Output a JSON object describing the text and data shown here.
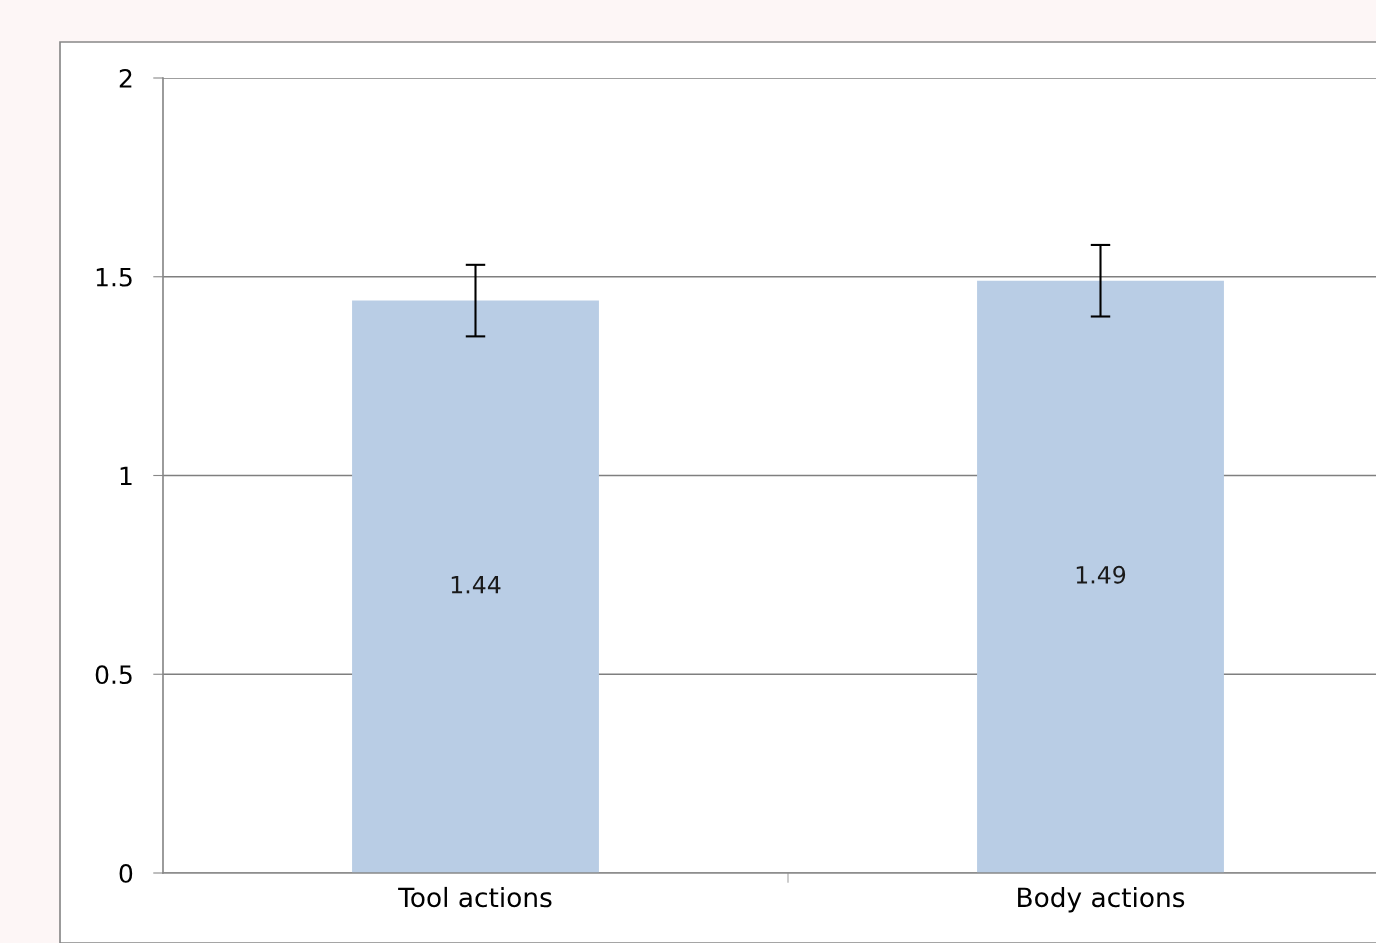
{
  "chart_data": {
    "type": "bar",
    "categories": [
      "Tool actions",
      "Body actions"
    ],
    "values": [
      1.44,
      1.49
    ],
    "errors": [
      0.09,
      0.09
    ],
    "color": "#b9cde5",
    "ylim": [
      0,
      2
    ],
    "yticks": [
      0,
      0.5,
      1,
      1.5,
      2
    ],
    "grid": "y",
    "data_labels": true,
    "legend": false
  }
}
